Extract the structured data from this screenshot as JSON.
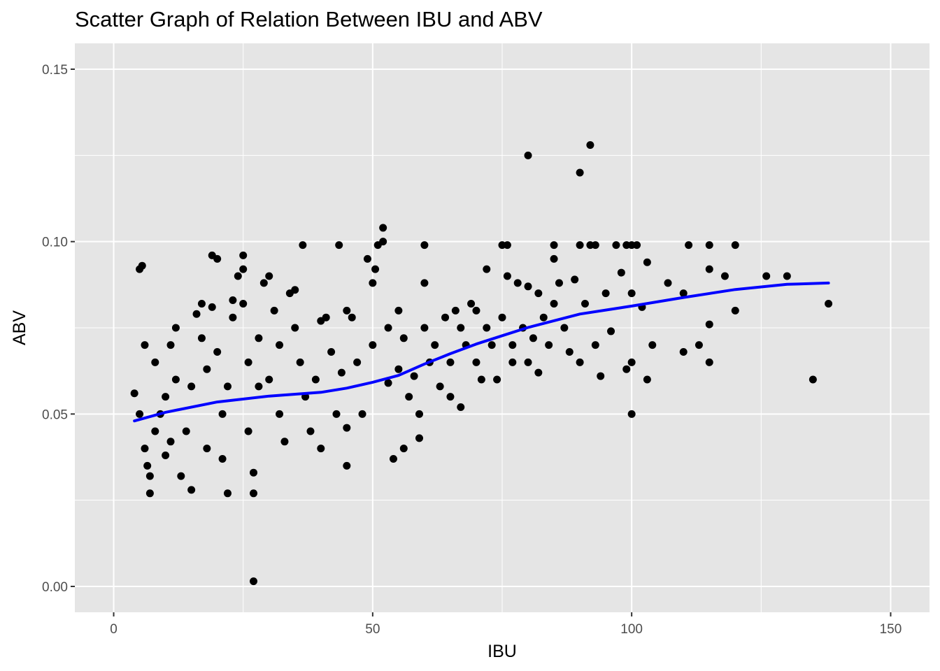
{
  "chart_data": {
    "type": "scatter",
    "title": "Scatter Graph of Relation Between IBU and ABV",
    "xlabel": "IBU",
    "ylabel": "ABV",
    "xlim": [
      -7.5,
      157.5
    ],
    "ylim": [
      -0.0075,
      0.1575
    ],
    "x_ticks": [
      0,
      50,
      100,
      150
    ],
    "x_tick_labels": [
      "0",
      "50",
      "100",
      "150"
    ],
    "y_ticks": [
      0.0,
      0.05,
      0.1,
      0.15
    ],
    "y_tick_labels": [
      "0.00",
      "0.05",
      "0.10",
      "0.15"
    ],
    "grid": true,
    "legend": "none",
    "colors": {
      "panel": "#e5e5e5",
      "grid": "#ffffff",
      "points": "#000000",
      "smooth": "#0000ff"
    },
    "series": [
      {
        "type": "points",
        "points": [
          [
            4,
            0.056
          ],
          [
            5,
            0.05
          ],
          [
            5,
            0.092
          ],
          [
            5.5,
            0.093
          ],
          [
            6,
            0.07
          ],
          [
            6,
            0.04
          ],
          [
            6.5,
            0.035
          ],
          [
            7,
            0.032
          ],
          [
            7,
            0.027
          ],
          [
            8,
            0.065
          ],
          [
            8,
            0.045
          ],
          [
            9,
            0.05
          ],
          [
            10,
            0.038
          ],
          [
            10,
            0.055
          ],
          [
            11,
            0.07
          ],
          [
            11,
            0.042
          ],
          [
            12,
            0.06
          ],
          [
            12,
            0.075
          ],
          [
            13,
            0.032
          ],
          [
            14,
            0.045
          ],
          [
            15,
            0.028
          ],
          [
            15,
            0.058
          ],
          [
            16,
            0.079
          ],
          [
            17,
            0.082
          ],
          [
            17,
            0.072
          ],
          [
            18,
            0.063
          ],
          [
            18,
            0.04
          ],
          [
            19,
            0.081
          ],
          [
            19,
            0.096
          ],
          [
            20,
            0.095
          ],
          [
            20,
            0.068
          ],
          [
            21,
            0.05
          ],
          [
            21,
            0.037
          ],
          [
            22,
            0.027
          ],
          [
            22,
            0.058
          ],
          [
            23,
            0.078
          ],
          [
            23,
            0.083
          ],
          [
            24,
            0.09
          ],
          [
            25,
            0.082
          ],
          [
            25,
            0.092
          ],
          [
            25,
            0.096
          ],
          [
            26,
            0.065
          ],
          [
            26,
            0.045
          ],
          [
            27,
            0.033
          ],
          [
            27,
            0.027
          ],
          [
            27,
            0.0015
          ],
          [
            28,
            0.058
          ],
          [
            28,
            0.072
          ],
          [
            29,
            0.088
          ],
          [
            30,
            0.09
          ],
          [
            30,
            0.06
          ],
          [
            31,
            0.08
          ],
          [
            32,
            0.07
          ],
          [
            32,
            0.05
          ],
          [
            33,
            0.042
          ],
          [
            34,
            0.085
          ],
          [
            35,
            0.086
          ],
          [
            35,
            0.075
          ],
          [
            36,
            0.065
          ],
          [
            36.5,
            0.099
          ],
          [
            37,
            0.055
          ],
          [
            38,
            0.045
          ],
          [
            39,
            0.06
          ],
          [
            40,
            0.077
          ],
          [
            40,
            0.04
          ],
          [
            41,
            0.078
          ],
          [
            42,
            0.068
          ],
          [
            43,
            0.05
          ],
          [
            43.5,
            0.099
          ],
          [
            44,
            0.062
          ],
          [
            45,
            0.08
          ],
          [
            45,
            0.046
          ],
          [
            45,
            0.035
          ],
          [
            46,
            0.078
          ],
          [
            47,
            0.065
          ],
          [
            48,
            0.05
          ],
          [
            49,
            0.095
          ],
          [
            50,
            0.07
          ],
          [
            50,
            0.088
          ],
          [
            50.5,
            0.092
          ],
          [
            51,
            0.099
          ],
          [
            52,
            0.104
          ],
          [
            52,
            0.1
          ],
          [
            53,
            0.075
          ],
          [
            53,
            0.059
          ],
          [
            54,
            0.037
          ],
          [
            55,
            0.08
          ],
          [
            55,
            0.063
          ],
          [
            56,
            0.072
          ],
          [
            56,
            0.04
          ],
          [
            57,
            0.055
          ],
          [
            58,
            0.061
          ],
          [
            59,
            0.05
          ],
          [
            59,
            0.043
          ],
          [
            60,
            0.099
          ],
          [
            60,
            0.088
          ],
          [
            60,
            0.075
          ],
          [
            61,
            0.065
          ],
          [
            62,
            0.07
          ],
          [
            63,
            0.058
          ],
          [
            64,
            0.078
          ],
          [
            65,
            0.065
          ],
          [
            65,
            0.055
          ],
          [
            66,
            0.08
          ],
          [
            67,
            0.075
          ],
          [
            67,
            0.052
          ],
          [
            68,
            0.07
          ],
          [
            69,
            0.082
          ],
          [
            70,
            0.065
          ],
          [
            70,
            0.08
          ],
          [
            71,
            0.06
          ],
          [
            72,
            0.092
          ],
          [
            72,
            0.075
          ],
          [
            73,
            0.07
          ],
          [
            74,
            0.06
          ],
          [
            75,
            0.078
          ],
          [
            75,
            0.099
          ],
          [
            76,
            0.09
          ],
          [
            76,
            0.099
          ],
          [
            77,
            0.07
          ],
          [
            77,
            0.065
          ],
          [
            78,
            0.088
          ],
          [
            79,
            0.075
          ],
          [
            80,
            0.125
          ],
          [
            80,
            0.087
          ],
          [
            80,
            0.065
          ],
          [
            81,
            0.072
          ],
          [
            82,
            0.062
          ],
          [
            82,
            0.085
          ],
          [
            83,
            0.078
          ],
          [
            84,
            0.07
          ],
          [
            85,
            0.082
          ],
          [
            85,
            0.095
          ],
          [
            85,
            0.099
          ],
          [
            86,
            0.088
          ],
          [
            87,
            0.075
          ],
          [
            88,
            0.068
          ],
          [
            89,
            0.089
          ],
          [
            90,
            0.12
          ],
          [
            90,
            0.099
          ],
          [
            90,
            0.065
          ],
          [
            91,
            0.082
          ],
          [
            92,
            0.128
          ],
          [
            92,
            0.099
          ],
          [
            93,
            0.07
          ],
          [
            93,
            0.099
          ],
          [
            94,
            0.061
          ],
          [
            95,
            0.085
          ],
          [
            96,
            0.074
          ],
          [
            97,
            0.099
          ],
          [
            98,
            0.091
          ],
          [
            99,
            0.063
          ],
          [
            99,
            0.099
          ],
          [
            100,
            0.099
          ],
          [
            100,
            0.085
          ],
          [
            100,
            0.065
          ],
          [
            100,
            0.05
          ],
          [
            101,
            0.099
          ],
          [
            102,
            0.081
          ],
          [
            103,
            0.06
          ],
          [
            103,
            0.094
          ],
          [
            104,
            0.07
          ],
          [
            107,
            0.088
          ],
          [
            110,
            0.068
          ],
          [
            110,
            0.085
          ],
          [
            111,
            0.099
          ],
          [
            113,
            0.07
          ],
          [
            115,
            0.099
          ],
          [
            115,
            0.092
          ],
          [
            115,
            0.076
          ],
          [
            115,
            0.065
          ],
          [
            118,
            0.09
          ],
          [
            120,
            0.099
          ],
          [
            120,
            0.08
          ],
          [
            126,
            0.09
          ],
          [
            130,
            0.09
          ],
          [
            135,
            0.06
          ],
          [
            138,
            0.082
          ]
        ]
      },
      {
        "type": "smooth",
        "x": [
          4,
          10,
          20,
          30,
          40,
          45,
          50,
          55,
          60,
          65,
          70,
          75,
          80,
          90,
          100,
          110,
          120,
          130,
          138
        ],
        "y": [
          0.048,
          0.0505,
          0.0535,
          0.0552,
          0.0563,
          0.0575,
          0.0592,
          0.0612,
          0.0645,
          0.0675,
          0.0703,
          0.0727,
          0.0751,
          0.079,
          0.0813,
          0.0838,
          0.0861,
          0.0876,
          0.088
        ]
      }
    ]
  }
}
